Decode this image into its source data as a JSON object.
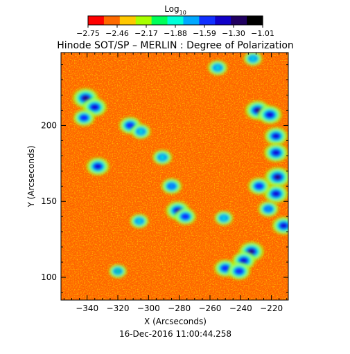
{
  "chart_data": {
    "type": "heatmap",
    "title": "Hinode SOT/SP – MERLIN : Degree of Polarization",
    "xlabel": "X (Arcseconds)",
    "ylabel": "Y (Arcseconds)",
    "footer": "16-Dec-2016 11:00:44.258",
    "xlim": [
      -357,
      -209
    ],
    "ylim": [
      85,
      248
    ],
    "x_ticks": [
      -340,
      -320,
      -300,
      -280,
      -260,
      -240,
      -220
    ],
    "y_ticks": [
      100,
      150,
      200
    ],
    "x_tick_labels": [
      "−340",
      "−320",
      "−300",
      "−280",
      "−260",
      "−240",
      "−220"
    ],
    "y_tick_labels": [
      "100",
      "150",
      "200"
    ],
    "colorbar": {
      "label_main": "Log",
      "label_sub": "10",
      "min": -2.75,
      "max": -1.01,
      "ticks": [
        -2.75,
        -2.46,
        -2.17,
        -1.88,
        -1.59,
        -1.3,
        -1.01
      ],
      "tick_labels": [
        "−2.75",
        "−2.46",
        "−2.17",
        "−1.88",
        "−1.59",
        "−1.30",
        "−1.01"
      ],
      "colors": [
        "#ff0000",
        "#ff6a00",
        "#ffc800",
        "#a8ff00",
        "#00ff5a",
        "#00ffd8",
        "#00a8ff",
        "#1030ff",
        "#1000c8",
        "#200060",
        "#000000"
      ]
    },
    "features": [
      {
        "label": "network patch",
        "x": -341,
        "y": 218,
        "level": -1.1
      },
      {
        "label": "network patch",
        "x": -335,
        "y": 212,
        "level": -1.3
      },
      {
        "label": "network patch",
        "x": -342,
        "y": 205,
        "level": -1.6
      },
      {
        "label": "network patch",
        "x": -312,
        "y": 200,
        "level": -1.5
      },
      {
        "label": "network patch",
        "x": -305,
        "y": 196,
        "level": -1.8
      },
      {
        "label": "network patch",
        "x": -333,
        "y": 173,
        "level": -1.4
      },
      {
        "label": "network patch",
        "x": -291,
        "y": 179,
        "level": -1.8
      },
      {
        "label": "network patch",
        "x": -285,
        "y": 160,
        "level": -1.7
      },
      {
        "label": "network patch",
        "x": -281,
        "y": 144,
        "level": -1.3
      },
      {
        "label": "network patch",
        "x": -276,
        "y": 140,
        "level": -1.6
      },
      {
        "label": "network patch",
        "x": -306,
        "y": 137,
        "level": -1.9
      },
      {
        "label": "network patch",
        "x": -320,
        "y": 104,
        "level": -2.0
      },
      {
        "label": "network patch",
        "x": -250,
        "y": 106,
        "level": -1.5
      },
      {
        "label": "network patch",
        "x": -233,
        "y": 117,
        "level": -1.2
      },
      {
        "label": "network patch",
        "x": -238,
        "y": 111,
        "level": -1.4
      },
      {
        "label": "network patch",
        "x": -241,
        "y": 104,
        "level": -1.5
      },
      {
        "label": "network patch",
        "x": -251,
        "y": 139,
        "level": -1.9
      },
      {
        "label": "network patch",
        "x": -229,
        "y": 210,
        "level": -1.2
      },
      {
        "label": "network patch",
        "x": -221,
        "y": 207,
        "level": -1.3
      },
      {
        "label": "network patch",
        "x": -217,
        "y": 193,
        "level": -1.4
      },
      {
        "label": "network patch",
        "x": -217,
        "y": 182,
        "level": -1.3
      },
      {
        "label": "network patch",
        "x": -216,
        "y": 166,
        "level": -1.1
      },
      {
        "label": "network patch",
        "x": -217,
        "y": 155,
        "level": -1.3
      },
      {
        "label": "network patch",
        "x": -228,
        "y": 160,
        "level": -1.5
      },
      {
        "label": "network patch",
        "x": -212,
        "y": 134,
        "level": -1.4
      },
      {
        "label": "network patch",
        "x": -222,
        "y": 145,
        "level": -1.7
      },
      {
        "label": "network patch",
        "x": -255,
        "y": 238,
        "level": -1.8
      },
      {
        "label": "network patch",
        "x": -232,
        "y": 244,
        "level": -1.9
      }
    ]
  }
}
